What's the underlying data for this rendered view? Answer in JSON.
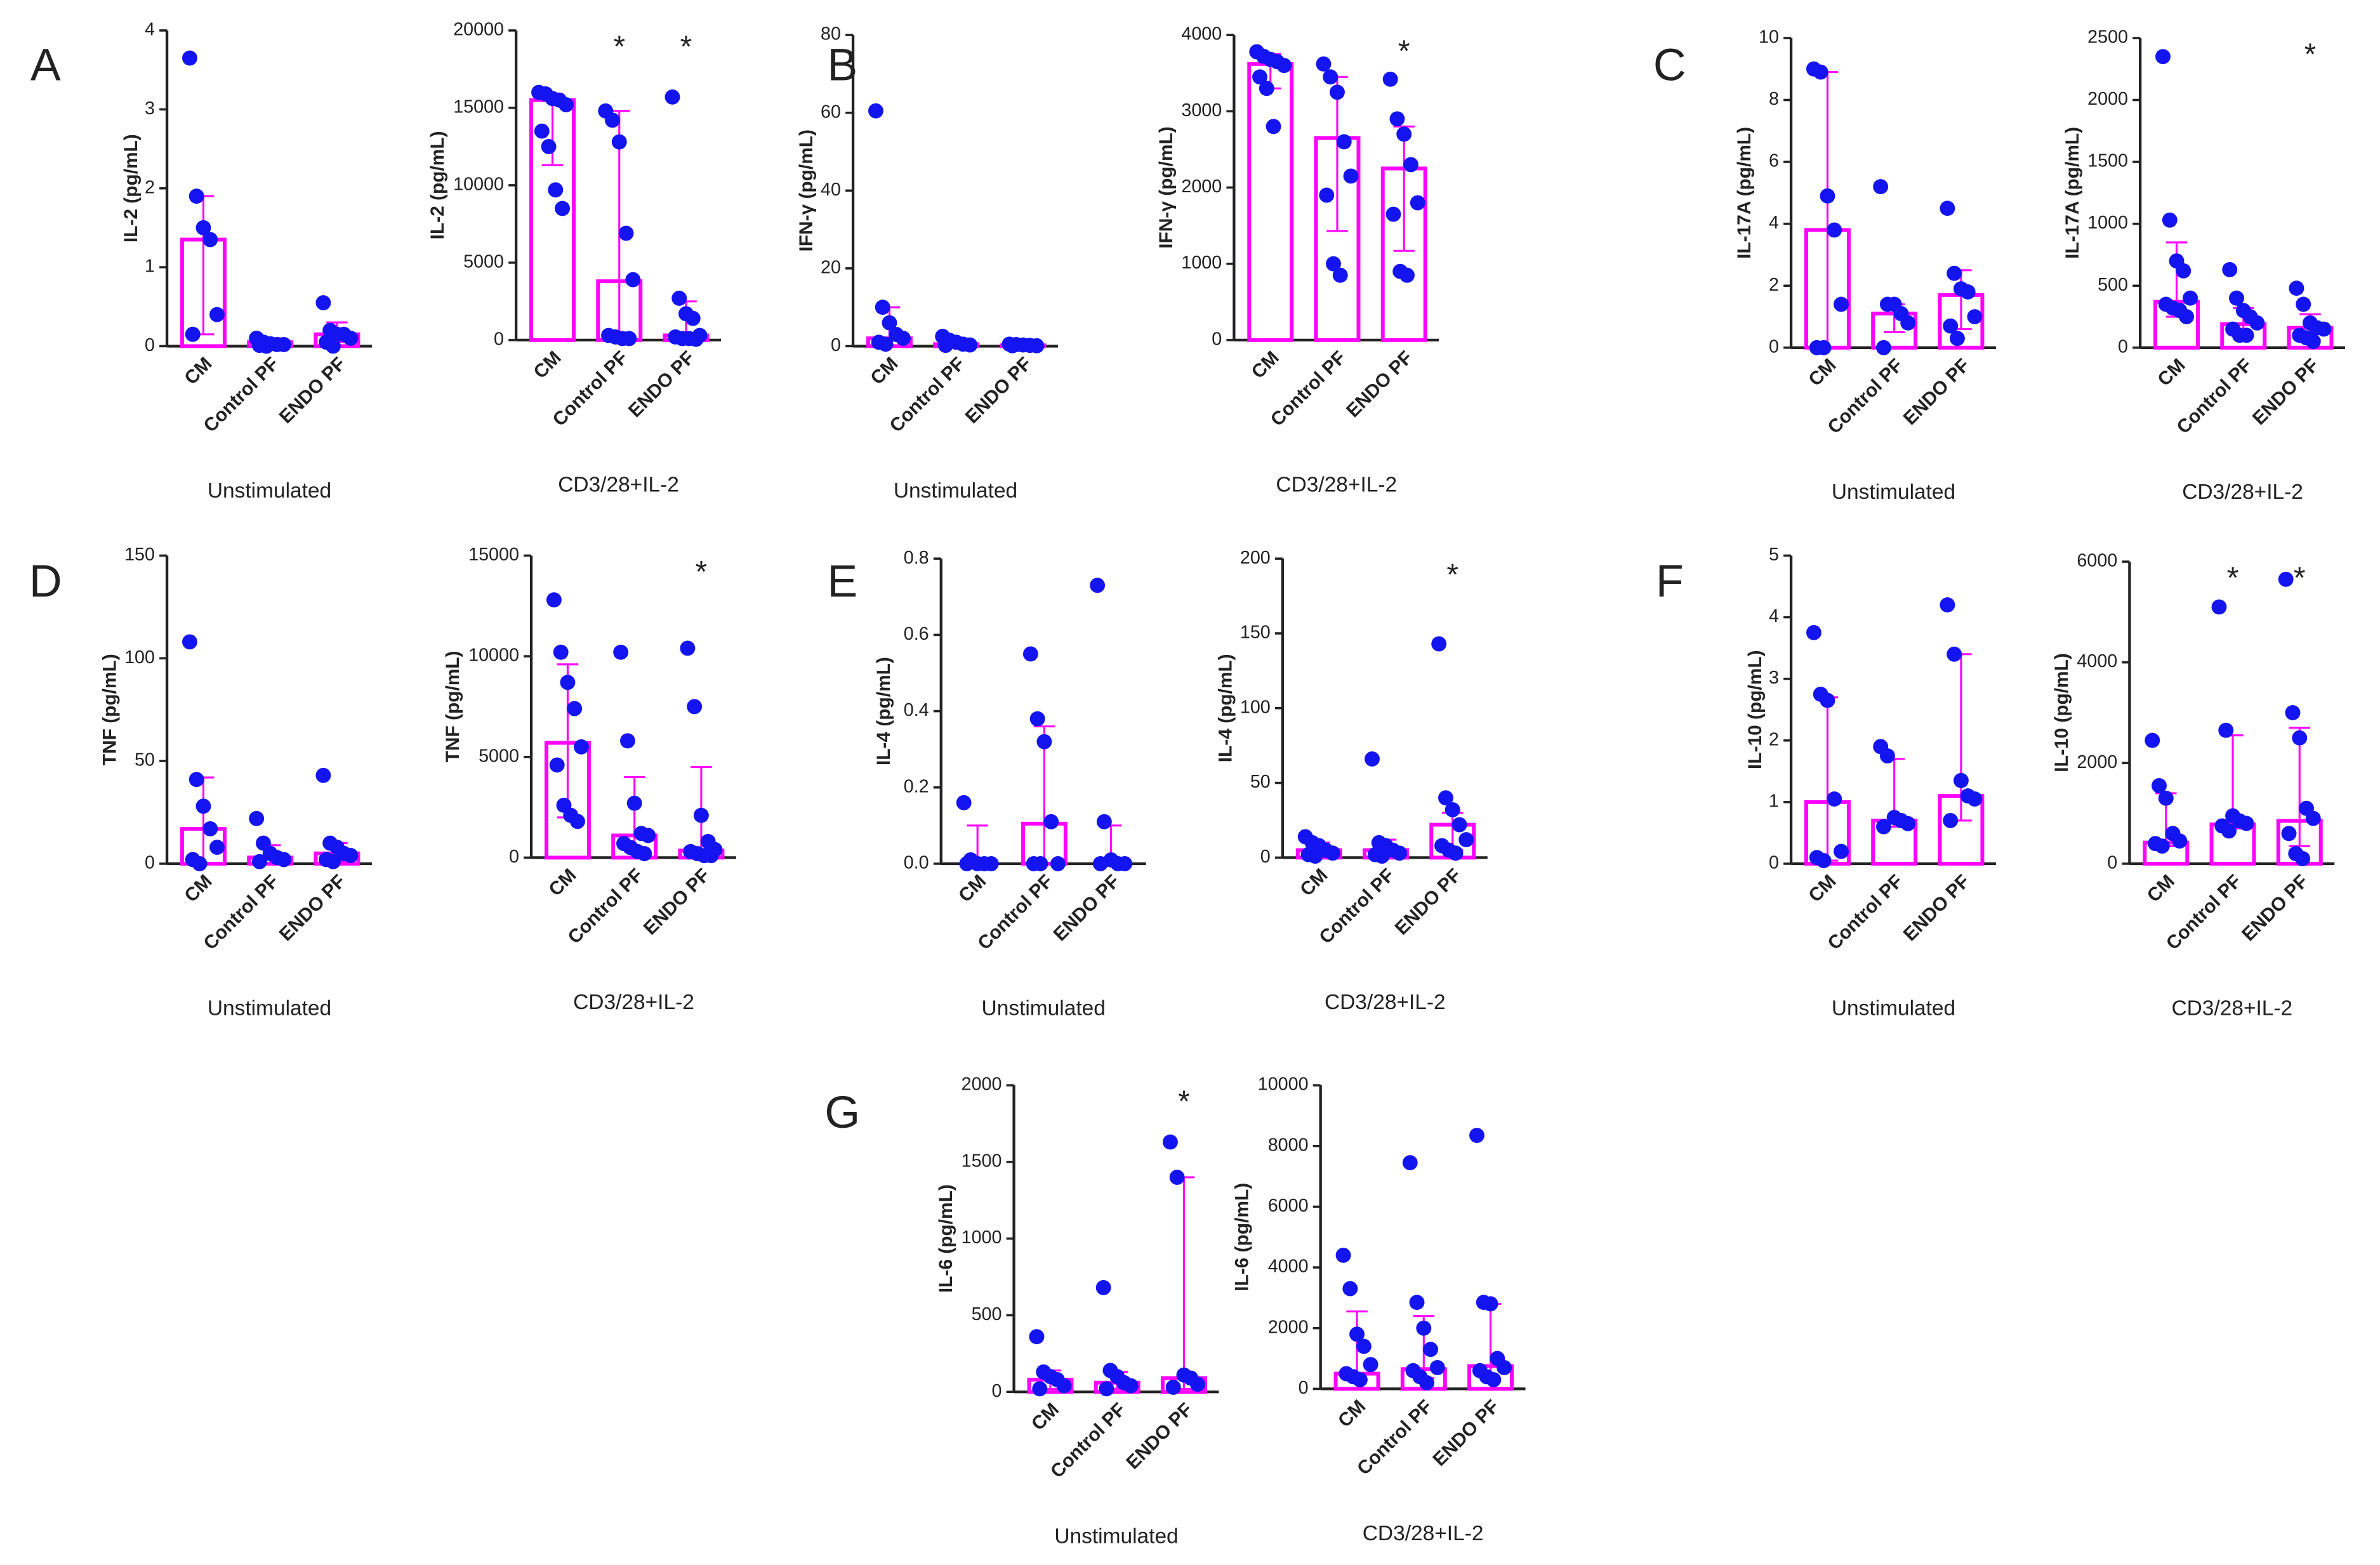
{
  "chart_data": [
    {
      "type": "bar",
      "panel": "A",
      "ylabel": "IL-2 (pg/mL)",
      "xlabel": "Unstimulated",
      "categories": [
        "CM",
        "Control PF",
        "ENDO PF"
      ],
      "color": "#ff00ff",
      "point_color": "#1414f0",
      "ylim": [
        0,
        4
      ],
      "yticks": [
        0,
        1,
        2,
        3,
        4
      ],
      "values": [
        1.35,
        0.05,
        0.15
      ],
      "error_low": [
        0.15,
        0,
        0.05
      ],
      "error_high": [
        1.9,
        0.1,
        0.3
      ],
      "points": [
        [
          3.65,
          1.9,
          1.5,
          1.35,
          0.4,
          0.15
        ],
        [
          0.1,
          0.05,
          0.03,
          0.02,
          0.02,
          0.01,
          0
        ],
        [
          0.55,
          0.2,
          0.15,
          0.15,
          0.1,
          0.05,
          0
        ]
      ]
    },
    {
      "type": "bar",
      "ylabel": "IL-2 (pg/mL)",
      "xlabel": "CD3/28+IL-2",
      "categories": [
        "CM",
        "Control PF",
        "ENDO PF"
      ],
      "color": "#ff00ff",
      "point_color": "#1414f0",
      "ylim": [
        0,
        20000
      ],
      "yticks": [
        0,
        5000,
        10000,
        15000,
        20000
      ],
      "values": [
        15500,
        3800,
        300
      ],
      "error_low": [
        11300,
        300,
        100
      ],
      "error_high": [
        15900,
        14800,
        2500
      ],
      "points": [
        [
          16000,
          15900,
          15600,
          15500,
          15200,
          13500,
          12500,
          9700,
          8500
        ],
        [
          14800,
          14200,
          12800,
          6900,
          3900,
          300,
          200,
          100,
          100
        ],
        [
          15700,
          2700,
          1700,
          1400,
          300,
          200,
          100,
          100,
          50
        ]
      ],
      "significance": [
        null,
        "*",
        "*"
      ]
    },
    {
      "type": "bar",
      "panel": "B",
      "ylabel": "IFN-γ (pg/mL)",
      "xlabel": "Unstimulated",
      "categories": [
        "CM",
        "Control PF",
        "ENDO PF"
      ],
      "color": "#ff00ff",
      "point_color": "#1414f0",
      "ylim": [
        0,
        80
      ],
      "yticks": [
        0,
        20,
        40,
        60,
        80
      ],
      "values": [
        2,
        0.5,
        0.2
      ],
      "error_low": [
        0,
        0,
        0
      ],
      "error_high": [
        10,
        2,
        0.5
      ],
      "points": [
        [
          60.5,
          10,
          6,
          3,
          2,
          1,
          0.5
        ],
        [
          2.5,
          1.5,
          1,
          0.5,
          0.3,
          0.2
        ],
        [
          0.5,
          0.4,
          0.3,
          0.2,
          0.1,
          0.1
        ]
      ]
    },
    {
      "type": "bar",
      "ylabel": "IFN-γ (pg/mL)",
      "xlabel": "CD3/28+IL-2",
      "categories": [
        "CM",
        "Control PF",
        "ENDO PF"
      ],
      "color": "#ff00ff",
      "point_color": "#1414f0",
      "ylim": [
        0,
        4000
      ],
      "yticks": [
        0,
        1000,
        2000,
        3000,
        4000
      ],
      "values": [
        3620,
        2650,
        2250
      ],
      "error_low": [
        3300,
        1430,
        1170
      ],
      "error_high": [
        3750,
        3450,
        2800
      ],
      "points": [
        [
          3780,
          3720,
          3680,
          3650,
          3600,
          3450,
          3300,
          2800
        ],
        [
          3620,
          3450,
          3250,
          2600,
          2150,
          1900,
          1000,
          850
        ],
        [
          3420,
          2900,
          2700,
          2300,
          1800,
          1650,
          900,
          850
        ]
      ],
      "significance": [
        null,
        null,
        "*"
      ]
    },
    {
      "type": "bar",
      "panel": "C",
      "ylabel": "IL-17A (pg/mL)",
      "xlabel": "Unstimulated",
      "categories": [
        "CM",
        "Control PF",
        "ENDO PF"
      ],
      "color": "#ff00ff",
      "point_color": "#1414f0",
      "ylim": [
        0,
        10
      ],
      "yticks": [
        0,
        2,
        4,
        6,
        8,
        10
      ],
      "values": [
        3.8,
        1.1,
        1.7
      ],
      "error_low": [
        0,
        0.5,
        0.6
      ],
      "error_high": [
        8.9,
        1.4,
        2.5
      ],
      "points": [
        [
          9,
          8.9,
          4.9,
          3.8,
          1.4,
          0,
          0
        ],
        [
          5.2,
          1.4,
          1.4,
          1.1,
          0.8,
          0
        ],
        [
          4.5,
          2.4,
          1.9,
          1.8,
          1,
          0.7,
          0.3
        ]
      ]
    },
    {
      "type": "bar",
      "ylabel": "IL-17A (pg/mL)",
      "xlabel": "CD3/28+IL-2",
      "categories": [
        "CM",
        "Control PF",
        "ENDO PF"
      ],
      "color": "#ff00ff",
      "point_color": "#1414f0",
      "ylim": [
        0,
        2500
      ],
      "yticks": [
        0,
        500,
        1000,
        1500,
        2000,
        2500
      ],
      "values": [
        370,
        190,
        160
      ],
      "error_low": [
        250,
        100,
        60
      ],
      "error_high": [
        850,
        320,
        270
      ],
      "points": [
        [
          2350,
          1030,
          700,
          620,
          400,
          350,
          320,
          300,
          250
        ],
        [
          630,
          400,
          300,
          250,
          200,
          150,
          100,
          100
        ],
        [
          480,
          350,
          200,
          160,
          150,
          100,
          80,
          50
        ]
      ],
      "significance": [
        null,
        null,
        "*"
      ]
    },
    {
      "type": "bar",
      "panel": "D",
      "ylabel": "TNF (pg/mL)",
      "xlabel": "Unstimulated",
      "categories": [
        "CM",
        "Control PF",
        "ENDO PF"
      ],
      "color": "#ff00ff",
      "point_color": "#1414f0",
      "ylim": [
        0,
        150
      ],
      "yticks": [
        0,
        50,
        100,
        150
      ],
      "values": [
        17,
        3,
        5
      ],
      "error_low": [
        0,
        0,
        1
      ],
      "error_high": [
        42,
        9,
        10
      ],
      "points": [
        [
          108,
          41,
          28,
          17,
          8,
          2,
          0
        ],
        [
          22,
          10,
          5,
          3,
          2,
          1
        ],
        [
          43,
          10,
          8,
          5,
          4,
          2,
          1
        ]
      ]
    },
    {
      "type": "bar",
      "ylabel": "TNF (pg/mL)",
      "xlabel": "CD3/28+IL-2",
      "categories": [
        "CM",
        "Control PF",
        "ENDO PF"
      ],
      "color": "#ff00ff",
      "point_color": "#1414f0",
      "ylim": [
        0,
        15000
      ],
      "yticks": [
        0,
        5000,
        10000,
        15000
      ],
      "values": [
        5700,
        1100,
        350
      ],
      "error_low": [
        2000,
        300,
        100
      ],
      "error_high": [
        9600,
        4000,
        4500
      ],
      "points": [
        [
          12800,
          10200,
          8700,
          7400,
          5500,
          4600,
          2600,
          2100,
          1800
        ],
        [
          10200,
          5800,
          2700,
          1200,
          1100,
          700,
          500,
          300,
          200
        ],
        [
          10400,
          7500,
          2100,
          800,
          400,
          300,
          200,
          100,
          100
        ]
      ],
      "significance": [
        null,
        null,
        "*"
      ]
    },
    {
      "type": "bar",
      "panel": "E",
      "ylabel": "IL-4 (pg/mL)",
      "xlabel": "Unstimulated",
      "categories": [
        "CM",
        "Control PF",
        "ENDO PF"
      ],
      "color": "#ff00ff",
      "point_color": "#1414f0",
      "ylim": [
        0,
        0.8
      ],
      "yticks": [
        {
          "value": 0,
          "label": "0.0"
        },
        0.2,
        0.4,
        0.6,
        0.8
      ],
      "values": [
        0,
        0.105,
        0
      ],
      "error_low": [
        0,
        0,
        0
      ],
      "error_high": [
        0.1,
        0.36,
        0.1
      ],
      "points": [
        [
          0.16,
          0.01,
          0,
          0,
          0,
          0
        ],
        [
          0.55,
          0.38,
          0.32,
          0.11,
          0,
          0,
          0
        ],
        [
          0.73,
          0.11,
          0.01,
          0,
          0,
          0
        ]
      ]
    },
    {
      "type": "bar",
      "ylabel": "IL-4 (pg/mL)",
      "xlabel": "CD3/28+IL-2",
      "categories": [
        "CM",
        "Control PF",
        "ENDO PF"
      ],
      "color": "#ff00ff",
      "point_color": "#1414f0",
      "ylim": [
        0,
        200
      ],
      "yticks": [
        0,
        50,
        100,
        150,
        200
      ],
      "values": [
        5,
        5,
        22
      ],
      "error_low": [
        2,
        2,
        5
      ],
      "error_high": [
        10,
        12,
        30
      ],
      "points": [
        [
          14,
          10,
          8,
          5,
          3,
          2,
          1
        ],
        [
          66,
          10,
          8,
          5,
          3,
          2,
          1
        ],
        [
          143,
          40,
          32,
          22,
          12,
          8,
          5,
          3
        ]
      ],
      "significance": [
        null,
        null,
        "*"
      ]
    },
    {
      "type": "bar",
      "panel": "F",
      "ylabel": "IL-10 (pg/mL)",
      "xlabel": "Unstimulated",
      "categories": [
        "CM",
        "Control PF",
        "ENDO PF"
      ],
      "color": "#ff00ff",
      "point_color": "#1414f0",
      "ylim": [
        0,
        5
      ],
      "yticks": [
        0,
        1,
        2,
        3,
        4,
        5
      ],
      "values": [
        1,
        0.7,
        1.1
      ],
      "error_low": [
        0.05,
        0.6,
        0.7
      ],
      "error_high": [
        2.7,
        1.7,
        3.4
      ],
      "points": [
        [
          3.75,
          2.75,
          2.65,
          1.05,
          0.2,
          0.1,
          0.05
        ],
        [
          1.9,
          1.75,
          0.75,
          0.7,
          0.65,
          0.6
        ],
        [
          4.2,
          3.4,
          1.35,
          1.1,
          1.05,
          0.7
        ]
      ]
    },
    {
      "type": "bar",
      "ylabel": "IL-10 (pg/mL)",
      "xlabel": "CD3/28+IL-2",
      "categories": [
        "CM",
        "Control PF",
        "ENDO PF"
      ],
      "color": "#ff00ff",
      "point_color": "#1414f0",
      "ylim": [
        0,
        6000
      ],
      "yticks": [
        0,
        2000,
        4000,
        6000
      ],
      "values": [
        420,
        780,
        850
      ],
      "error_low": [
        350,
        700,
        350
      ],
      "error_high": [
        1400,
        2550,
        2700
      ],
      "points": [
        [
          2450,
          1550,
          1300,
          600,
          450,
          400,
          350
        ],
        [
          5100,
          2650,
          950,
          850,
          800,
          750,
          650
        ],
        [
          5650,
          3000,
          2500,
          1100,
          900,
          600,
          200,
          100
        ]
      ],
      "significance": [
        null,
        "*",
        "*"
      ]
    },
    {
      "type": "bar",
      "panel": "G",
      "ylabel": "IL-6 (pg/mL)",
      "xlabel": "Unstimulated",
      "categories": [
        "CM",
        "Control PF",
        "ENDO PF"
      ],
      "color": "#ff00ff",
      "point_color": "#1414f0",
      "ylim": [
        0,
        2000
      ],
      "yticks": [
        0,
        500,
        1000,
        1500,
        2000
      ],
      "values": [
        80,
        60,
        90
      ],
      "error_low": [
        20,
        20,
        20
      ],
      "error_high": [
        140,
        130,
        1400
      ],
      "points": [
        [
          360,
          130,
          100,
          80,
          40,
          20
        ],
        [
          680,
          140,
          100,
          60,
          40,
          20
        ],
        [
          1630,
          1400,
          110,
          90,
          50,
          30
        ]
      ],
      "significance": [
        null,
        null,
        "*"
      ]
    },
    {
      "type": "bar",
      "ylabel": "IL-6 (pg/mL)",
      "xlabel": "CD3/28+IL-2",
      "categories": [
        "CM",
        "Control PF",
        "ENDO PF"
      ],
      "color": "#ff00ff",
      "point_color": "#1414f0",
      "ylim": [
        0,
        10000
      ],
      "yticks": [
        0,
        2000,
        4000,
        6000,
        8000,
        10000
      ],
      "values": [
        500,
        650,
        750
      ],
      "error_low": [
        300,
        350,
        350
      ],
      "error_high": [
        2550,
        2400,
        2800
      ],
      "points": [
        [
          4400,
          3300,
          1800,
          1400,
          800,
          500,
          400,
          300
        ],
        [
          7450,
          2850,
          2000,
          1300,
          700,
          600,
          400,
          200
        ],
        [
          8350,
          2850,
          2800,
          1000,
          700,
          600,
          400,
          300
        ]
      ]
    }
  ]
}
